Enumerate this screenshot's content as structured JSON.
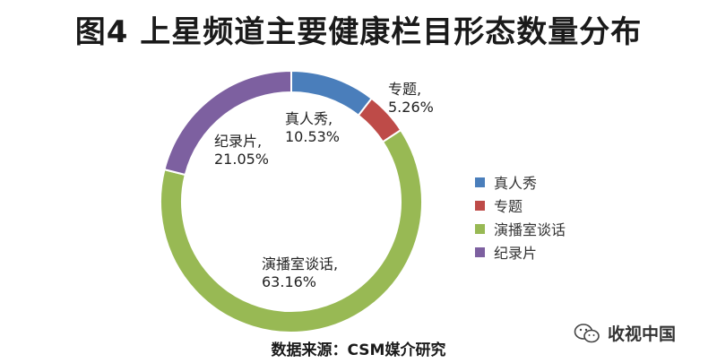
{
  "chart_data": {
    "type": "pie",
    "title": "图4 上星频道主要健康栏目形态数量分布",
    "categories": [
      "真人秀",
      "专题",
      "演播室谈话",
      "纪录片"
    ],
    "values": [
      10.53,
      5.26,
      63.16,
      21.05
    ],
    "colors": [
      "#4a7ebb",
      "#be4b48",
      "#98b954",
      "#7d60a0"
    ],
    "data_labels": [
      {
        "name": "真人秀,",
        "value": "10.53%"
      },
      {
        "name": "专题,",
        "value": "5.26%"
      },
      {
        "name": "演播室谈话,",
        "value": "63.16%"
      },
      {
        "name": "纪录片,",
        "value": "21.05%"
      }
    ],
    "donut": true,
    "legend_position": "right"
  },
  "legend": {
    "items": [
      {
        "label": "真人秀",
        "color": "#4a7ebb"
      },
      {
        "label": "专题",
        "color": "#be4b48"
      },
      {
        "label": "演播室谈话",
        "color": "#98b954"
      },
      {
        "label": "纪录片",
        "color": "#7d60a0"
      }
    ]
  },
  "source": "数据来源：CSM媒介研究",
  "watermark": {
    "text": "收视中国",
    "icon": "wechat-icon"
  }
}
